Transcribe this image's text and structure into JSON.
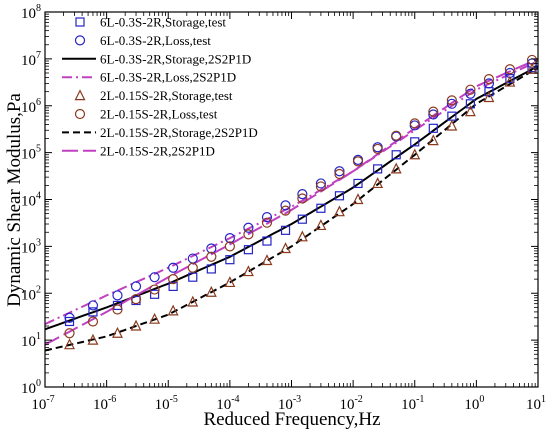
{
  "chart_data": {
    "type": "scatter",
    "title": "",
    "xlabel": "Reduced Frequency,Hz",
    "ylabel": "Dynamic Shear Modulus,Pa",
    "xscale": "log",
    "yscale": "log",
    "xlim": [
      1e-07,
      10
    ],
    "ylim": [
      1,
      100000000.0
    ],
    "x_ticks": [
      {
        "base": "10",
        "exp": "-7"
      },
      {
        "base": "10",
        "exp": "-6"
      },
      {
        "base": "10",
        "exp": "-5"
      },
      {
        "base": "10",
        "exp": "-4"
      },
      {
        "base": "10",
        "exp": "-3"
      },
      {
        "base": "10",
        "exp": "-2"
      },
      {
        "base": "10",
        "exp": "-1"
      },
      {
        "base": "10",
        "exp": "0"
      },
      {
        "base": "10",
        "exp": "1"
      }
    ],
    "y_ticks": [
      {
        "base": "10",
        "exp": "0"
      },
      {
        "base": "10",
        "exp": "1"
      },
      {
        "base": "10",
        "exp": "2"
      },
      {
        "base": "10",
        "exp": "3"
      },
      {
        "base": "10",
        "exp": "4"
      },
      {
        "base": "10",
        "exp": "5"
      },
      {
        "base": "10",
        "exp": "6"
      },
      {
        "base": "10",
        "exp": "7"
      },
      {
        "base": "10",
        "exp": "8"
      }
    ],
    "grid": false,
    "legend_position": "top-left",
    "series": [
      {
        "name": "6L-0.3S-2R,Storage,test",
        "kind": "marker",
        "marker": "square",
        "color": "#2424c8",
        "points": [
          [
            2.5e-07,
            25
          ],
          [
            6e-07,
            40
          ],
          [
            1.5e-06,
            55
          ],
          [
            3e-06,
            70
          ],
          [
            6e-06,
            95
          ],
          [
            1.2e-05,
            140
          ],
          [
            2.5e-05,
            220
          ],
          [
            5e-05,
            330
          ],
          [
            0.0001,
            520
          ],
          [
            0.0002,
            850
          ],
          [
            0.0004,
            1300
          ],
          [
            0.0008,
            2200
          ],
          [
            0.0015,
            3800
          ],
          [
            0.003,
            6500
          ],
          [
            0.006,
            12000
          ],
          [
            0.012,
            22000
          ],
          [
            0.025,
            45000
          ],
          [
            0.05,
            90000
          ],
          [
            0.1,
            170000
          ],
          [
            0.2,
            330000
          ],
          [
            0.4,
            600000
          ],
          [
            0.8,
            1100000
          ],
          [
            1.6,
            2000000
          ],
          [
            3.5,
            3800000
          ],
          [
            8,
            6500000
          ]
        ]
      },
      {
        "name": "6L-0.3S-2R,Loss,test",
        "kind": "marker",
        "marker": "circle",
        "color": "#2424c8",
        "points": [
          [
            2.5e-07,
            30
          ],
          [
            6e-07,
            55
          ],
          [
            1.5e-06,
            90
          ],
          [
            3e-06,
            140
          ],
          [
            6e-06,
            220
          ],
          [
            1.2e-05,
            350
          ],
          [
            2.5e-05,
            550
          ],
          [
            5e-05,
            900
          ],
          [
            0.0001,
            1500
          ],
          [
            0.0002,
            2500
          ],
          [
            0.0004,
            4200
          ],
          [
            0.0008,
            7500
          ],
          [
            0.0015,
            13000
          ],
          [
            0.003,
            22000
          ],
          [
            0.006,
            40000
          ],
          [
            0.012,
            70000
          ],
          [
            0.025,
            130000
          ],
          [
            0.05,
            220000
          ],
          [
            0.1,
            380000
          ],
          [
            0.2,
            650000
          ],
          [
            0.4,
            1100000
          ],
          [
            0.8,
            1800000
          ],
          [
            1.6,
            3000000
          ],
          [
            3.5,
            5000000
          ],
          [
            8,
            8000000
          ]
        ]
      },
      {
        "name": "6L-0.3S-2R,Storage,2S2P1D",
        "kind": "line",
        "dash": "solid",
        "color": "#000000",
        "points": [
          [
            1e-07,
            17
          ],
          [
            1e-06,
            50
          ],
          [
            1e-05,
            160
          ],
          [
            0.0001,
            600
          ],
          [
            0.001,
            3000
          ],
          [
            0.01,
            18000
          ],
          [
            0.1,
            150000
          ],
          [
            1,
            1400000
          ],
          [
            10,
            7000000
          ]
        ]
      },
      {
        "name": "6L-0.3S-2R,Loss,2S2P1D",
        "kind": "line",
        "dash": "dashdot",
        "color": "#c040c0",
        "points": [
          [
            1e-07,
            22
          ],
          [
            1e-06,
            90
          ],
          [
            1e-05,
            350
          ],
          [
            0.0001,
            1500
          ],
          [
            0.001,
            7000
          ],
          [
            0.01,
            40000
          ],
          [
            0.1,
            300000
          ],
          [
            1,
            2200000
          ],
          [
            10,
            9000000
          ]
        ]
      },
      {
        "name": "2L-0.15S-2R,Storage,test",
        "kind": "marker",
        "marker": "triangle",
        "color": "#8b3a1e",
        "points": [
          [
            2.5e-07,
            8
          ],
          [
            6e-07,
            10
          ],
          [
            1.5e-06,
            14
          ],
          [
            3e-06,
            20
          ],
          [
            6e-06,
            28
          ],
          [
            1.2e-05,
            42
          ],
          [
            2.5e-05,
            65
          ],
          [
            5e-05,
            105
          ],
          [
            0.0001,
            170
          ],
          [
            0.0002,
            290
          ],
          [
            0.0004,
            500
          ],
          [
            0.0008,
            900
          ],
          [
            0.0015,
            1600
          ],
          [
            0.003,
            2800
          ],
          [
            0.006,
            5500
          ],
          [
            0.012,
            10000
          ],
          [
            0.025,
            22000
          ],
          [
            0.05,
            45000
          ],
          [
            0.1,
            90000
          ],
          [
            0.2,
            180000
          ],
          [
            0.4,
            370000
          ],
          [
            0.8,
            750000
          ],
          [
            1.6,
            1500000
          ],
          [
            3.5,
            3200000
          ],
          [
            8,
            6000000
          ]
        ]
      },
      {
        "name": "2L-0.15S-2R,Loss,test",
        "kind": "marker",
        "marker": "circle",
        "color": "#8b3a1e",
        "points": [
          [
            2.5e-07,
            14
          ],
          [
            6e-07,
            25
          ],
          [
            1.5e-06,
            45
          ],
          [
            3e-06,
            75
          ],
          [
            6e-06,
            120
          ],
          [
            1.2e-05,
            200
          ],
          [
            2.5e-05,
            350
          ],
          [
            5e-05,
            600
          ],
          [
            0.0001,
            1000
          ],
          [
            0.0002,
            1800
          ],
          [
            0.0004,
            3200
          ],
          [
            0.0008,
            5800
          ],
          [
            0.0015,
            10500
          ],
          [
            0.003,
            19000
          ],
          [
            0.006,
            35000
          ],
          [
            0.012,
            65000
          ],
          [
            0.025,
            120000
          ],
          [
            0.05,
            230000
          ],
          [
            0.1,
            420000
          ],
          [
            0.2,
            750000
          ],
          [
            0.4,
            1300000
          ],
          [
            0.8,
            2200000
          ],
          [
            1.6,
            3700000
          ],
          [
            3.5,
            6000000
          ],
          [
            8,
            9500000
          ]
        ]
      },
      {
        "name": "2L-0.15S-2R,Storage,2S2P1D",
        "kind": "line",
        "dash": "dashed",
        "color": "#000000",
        "points": [
          [
            1e-07,
            6
          ],
          [
            1e-06,
            12
          ],
          [
            1e-05,
            35
          ],
          [
            0.0001,
            170
          ],
          [
            0.001,
            1000
          ],
          [
            0.01,
            8000
          ],
          [
            0.1,
            90000
          ],
          [
            1,
            1100000
          ],
          [
            10,
            6500000
          ]
        ]
      },
      {
        "name": "2L-0.15S-2R,2S2P1D",
        "kind": "line",
        "dash": "longdash",
        "color": "#c040c0",
        "points": [
          [
            1e-07,
            8
          ],
          [
            1e-06,
            40
          ],
          [
            1e-05,
            220
          ],
          [
            0.0001,
            1100
          ],
          [
            0.001,
            6000
          ],
          [
            0.01,
            40000
          ],
          [
            0.1,
            330000
          ],
          [
            1,
            2600000
          ],
          [
            10,
            10000000
          ]
        ]
      }
    ]
  }
}
